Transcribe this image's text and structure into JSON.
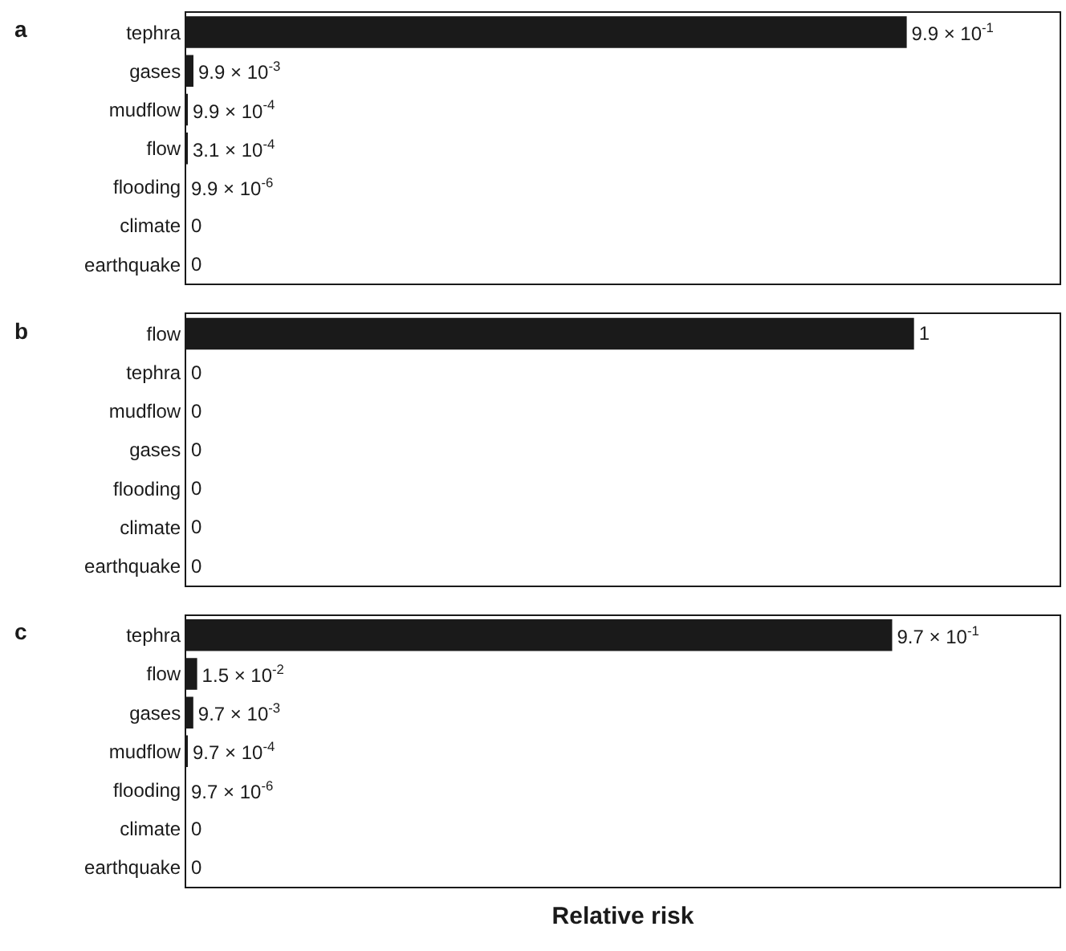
{
  "chart_data": [
    {
      "type": "bar",
      "orientation": "horizontal",
      "title": "a",
      "categories": [
        "tephra",
        "gases",
        "mudflow",
        "flow",
        "flooding",
        "climate",
        "earthquake"
      ],
      "values": [
        0.99,
        0.0099,
        0.00099,
        0.00031,
        9.9e-06,
        0,
        0
      ],
      "value_labels": [
        "9.9 × 10$^{-1}$",
        "9.9 × 10$^{-3}$",
        "9.9 × 10$^{-4}$",
        "3.1 × 10$^{-4}$",
        "9.9 × 10$^{-6}$",
        "0",
        "0"
      ],
      "color": "#1a1a1a",
      "xlim": [
        0,
        1.2
      ],
      "tick_labels": "y"
    },
    {
      "type": "bar",
      "orientation": "horizontal",
      "title": "b",
      "categories": [
        "flow",
        "tephra",
        "mudflow",
        "gases",
        "flooding",
        "climate",
        "earthquake"
      ],
      "values": [
        1,
        0,
        0,
        0,
        0,
        0,
        0
      ],
      "data_labels": true,
      "color": "#1a1a1a",
      "xlim": [
        0,
        1.2
      ],
      "tick_labels": "y"
    },
    {
      "type": "bar",
      "orientation": "horizontal",
      "title": "c",
      "xlabel": "Relative risk",
      "categories": [
        "tephra",
        "flow",
        "gases",
        "mudflow",
        "flooding",
        "climate",
        "earthquake"
      ],
      "values": [
        0.97,
        0.015,
        0.0097,
        0.00097,
        9.7e-06,
        0,
        0
      ],
      "value_labels": [
        "9.7 × 10$^{-1}$",
        "1.5 × 10$^{-2}$",
        "9.7 × 10$^{-3}$",
        "9.7 × 10$^{-4}$",
        "9.7 × 10$^{-6}$",
        "0",
        "0"
      ],
      "color": "#1a1a1a",
      "xlim": [
        0,
        1.2
      ],
      "tick_labels": "y"
    }
  ]
}
